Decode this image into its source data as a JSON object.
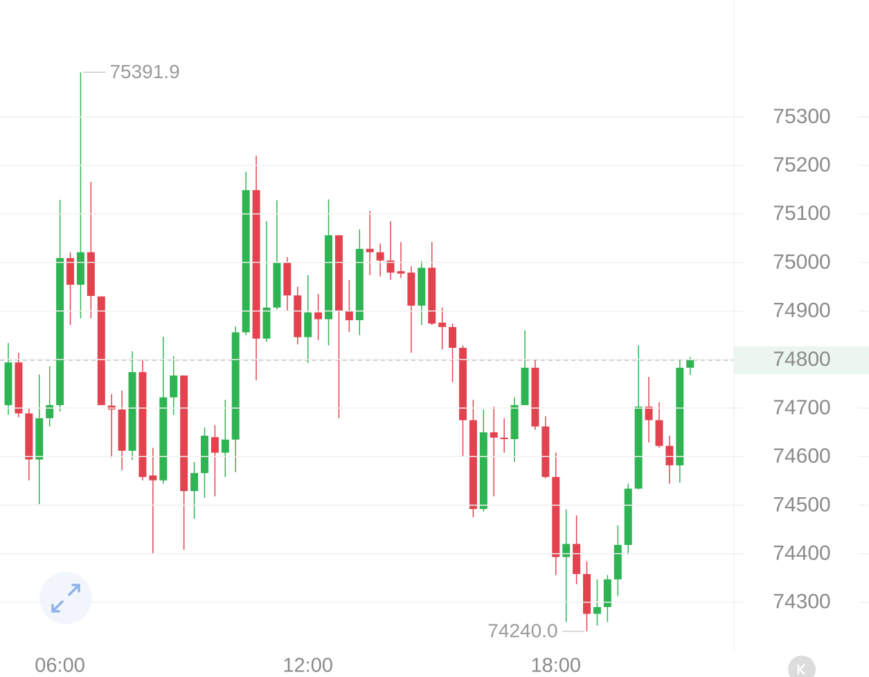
{
  "chart_data": {
    "type": "candlestick",
    "categories": [
      null,
      null,
      null,
      null,
      null,
      "06:00",
      null,
      null,
      null,
      null,
      null,
      null,
      null,
      null,
      null,
      null,
      null,
      null,
      null,
      null,
      null,
      null,
      null,
      null,
      null,
      null,
      null,
      null,
      null,
      "12:00",
      null,
      null,
      null,
      null,
      null,
      null,
      null,
      null,
      null,
      null,
      null,
      null,
      null,
      null,
      null,
      null,
      null,
      null,
      null,
      null,
      null,
      null,
      null,
      "18:00",
      null,
      null,
      null,
      null,
      null,
      null,
      null,
      null,
      null,
      null,
      null,
      null,
      null
    ],
    "open": [
      74706,
      74794,
      74689,
      74594,
      74679,
      74706,
      75009,
      74954,
      75021,
      74930,
      74705,
      74697,
      74612,
      74774,
      74561,
      74551,
      74722,
      74767,
      74529,
      74566,
      74640,
      74608,
      74635,
      74856,
      75149,
      74843,
      74907,
      75000,
      74932,
      74846,
      74897,
      74883,
      75056,
      74900,
      74881,
      75028,
      75021,
      75004,
      74982,
      74979,
      74911,
      74989,
      74876,
      74867,
      74824,
      74675,
      74492,
      74650,
      74639,
      74636,
      74706,
      74783,
      74662,
      74558,
      74393,
      74420,
      74358,
      74276,
      74290,
      74347,
      74418,
      74534,
      74703,
      74675,
      74622,
      74582,
      74783
    ],
    "high": [
      74834,
      74814,
      74700,
      74769,
      74786,
      75129,
      75021,
      75391.9,
      75166,
      74930,
      74729,
      74736,
      74817,
      74800,
      74618,
      74847,
      74807,
      74767,
      74589,
      74660,
      74665,
      74717,
      74868,
      75187,
      75220,
      75085,
      75128,
      75011,
      74950,
      74974,
      74935,
      75130,
      75056,
      74964,
      75068,
      75106,
      75039,
      75085,
      75042,
      74992,
      75003,
      75042,
      74907,
      74874,
      74829,
      74717,
      74697,
      74703,
      74679,
      74722,
      74860,
      74800,
      74683,
      74608,
      74491,
      74479,
      74384,
      74347,
      74356,
      74458,
      74544,
      74829,
      74764,
      74712,
      74643,
      74800,
      74805
    ],
    "low": [
      74686,
      74681,
      74551,
      74502,
      74662,
      74693,
      74871,
      74885,
      74885,
      74706,
      74598,
      74572,
      74593,
      74551,
      74401,
      74544,
      74686,
      74408,
      74472,
      74515,
      74518,
      74558,
      74568,
      74850,
      74757,
      74836,
      74903,
      74900,
      74831,
      74793,
      74840,
      74829,
      74679,
      74857,
      74850,
      74974,
      74971,
      74964,
      74968,
      74814,
      74871,
      74871,
      74821,
      74753,
      74601,
      74475,
      74487,
      74518,
      74608,
      74589,
      74706,
      74655,
      74555,
      74356,
      74259,
      74337,
      74240,
      74252,
      74259,
      74313,
      74398,
      74532,
      74629,
      74618,
      74544,
      74546,
      74768
    ],
    "close": [
      74794,
      74689,
      74594,
      74679,
      74706,
      75009,
      74954,
      75021,
      74931,
      74706,
      74697,
      74612,
      74774,
      74558,
      74551,
      74722,
      74767,
      74529,
      74566,
      74643,
      74608,
      74635,
      74856,
      75149,
      74843,
      74907,
      75000,
      74932,
      74846,
      74897,
      74883,
      75056,
      74900,
      74881,
      75028,
      75021,
      75004,
      74979,
      74977,
      74911,
      74989,
      74874,
      74867,
      74824,
      74675,
      74492,
      74650,
      74639,
      74636,
      74706,
      74783,
      74662,
      74558,
      74393,
      74420,
      74358,
      74276,
      74290,
      74347,
      74418,
      74534,
      74703,
      74675,
      74622,
      74582,
      74783,
      74798.7
    ],
    "low_label": "74240.0",
    "up_color": "#2fb453",
    "down_color": "#e2434f",
    "ylim": [
      74200,
      75540
    ],
    "yticks": [
      74300,
      74400,
      74500,
      74600,
      74700,
      74800,
      74900,
      75000,
      75100,
      75200,
      75300
    ],
    "grid": true
  }
}
